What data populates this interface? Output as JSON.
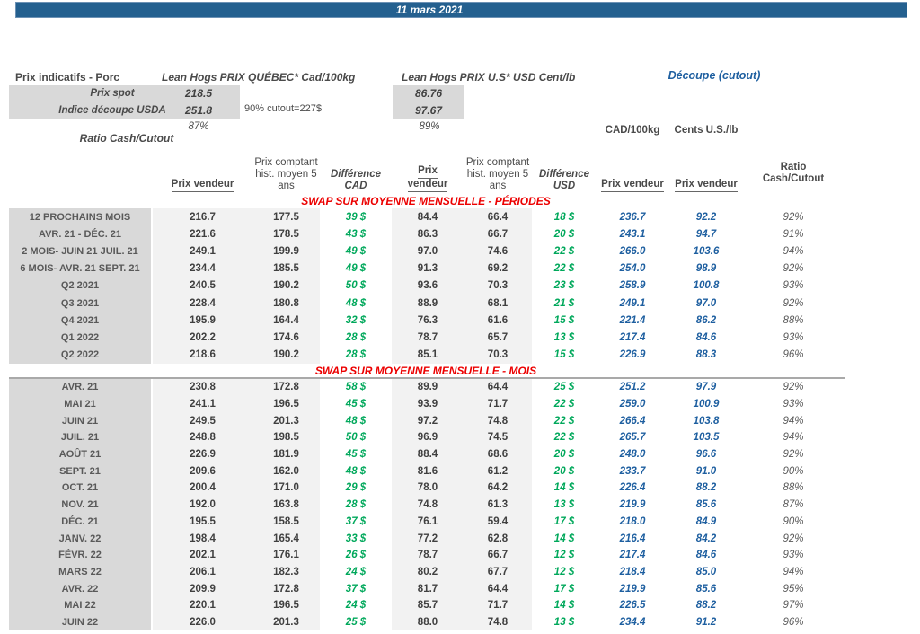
{
  "title_bar": {
    "date": "11 mars 2021"
  },
  "top": {
    "left_title": "Prix indicatifs - Porc",
    "quebec_header": "Lean Hogs PRIX QUÉBEC* Cad/100kg",
    "us_header": "Lean Hogs PRIX U.S* USD Cent/lb",
    "cutout_header": "Découpe (cutout)",
    "spot_label": "Prix spot",
    "spot_cad": "218.5",
    "spot_usd": "86.76",
    "index_label": "Indice découpe USDA",
    "index_cad": "251.8",
    "index_usd": "97.67",
    "cutout_note": "90% cutout=227$",
    "ratio_label": "Ratio Cash/Cutout",
    "ratio_cad": "87%",
    "ratio_usd": "89%"
  },
  "columns": {
    "cad_unit": "CAD/100kg",
    "us_unit": "Cents U.S./lb",
    "prix_vendeur": "Prix vendeur",
    "prix_vendeur_l1": "Prix",
    "prix_vendeur_l2": "vendeur",
    "prix_comptant_l1": "Prix comptant",
    "prix_comptant_l2": "hist. moyen 5",
    "prix_comptant_l3": "ans",
    "difference": "Différence",
    "cad": "CAD",
    "usd": "USD",
    "ratio_l1": "Ratio",
    "ratio_l2": "Cash/Cutout"
  },
  "sections": [
    {
      "header": "SWAP SUR MOYENNE MENSUELLE - PÉRIODES",
      "rows": [
        {
          "label": "12 PROCHAINS MOIS",
          "pv_cad": "216.7",
          "pc_cad": "177.5",
          "diff_cad": "39 $",
          "pv_usd": "84.4",
          "pc_usd": "66.4",
          "diff_usd": "18 $",
          "cutout_cad": "236.7",
          "cutout_us": "92.2",
          "ratio": "92%"
        },
        {
          "label": "AVR. 21 - DÉC. 21",
          "pv_cad": "221.6",
          "pc_cad": "178.5",
          "diff_cad": "43 $",
          "pv_usd": "86.3",
          "pc_usd": "66.7",
          "diff_usd": "20 $",
          "cutout_cad": "243.1",
          "cutout_us": "94.7",
          "ratio": "91%"
        },
        {
          "label": "2 MOIS- JUIN 21 JUIL. 21",
          "pv_cad": "249.1",
          "pc_cad": "199.9",
          "diff_cad": "49 $",
          "pv_usd": "97.0",
          "pc_usd": "74.6",
          "diff_usd": "22 $",
          "cutout_cad": "266.0",
          "cutout_us": "103.6",
          "ratio": "94%"
        },
        {
          "label": "6 MOIS- AVR. 21 SEPT. 21",
          "pv_cad": "234.4",
          "pc_cad": "185.5",
          "diff_cad": "49 $",
          "pv_usd": "91.3",
          "pc_usd": "69.2",
          "diff_usd": "22 $",
          "cutout_cad": "254.0",
          "cutout_us": "98.9",
          "ratio": "92%"
        },
        {
          "label": "Q2 2021",
          "pv_cad": "240.5",
          "pc_cad": "190.2",
          "diff_cad": "50 $",
          "pv_usd": "93.6",
          "pc_usd": "70.3",
          "diff_usd": "23 $",
          "cutout_cad": "258.9",
          "cutout_us": "100.8",
          "ratio": "93%"
        },
        {
          "label": "Q3 2021",
          "pv_cad": "228.4",
          "pc_cad": "180.8",
          "diff_cad": "48 $",
          "pv_usd": "88.9",
          "pc_usd": "68.1",
          "diff_usd": "21 $",
          "cutout_cad": "249.1",
          "cutout_us": "97.0",
          "ratio": "92%"
        },
        {
          "label": "Q4 2021",
          "pv_cad": "195.9",
          "pc_cad": "164.4",
          "diff_cad": "32 $",
          "pv_usd": "76.3",
          "pc_usd": "61.6",
          "diff_usd": "15 $",
          "cutout_cad": "221.4",
          "cutout_us": "86.2",
          "ratio": "88%"
        },
        {
          "label": "Q1 2022",
          "pv_cad": "202.2",
          "pc_cad": "174.6",
          "diff_cad": "28 $",
          "pv_usd": "78.7",
          "pc_usd": "65.7",
          "diff_usd": "13 $",
          "cutout_cad": "217.4",
          "cutout_us": "84.6",
          "ratio": "93%"
        },
        {
          "label": "Q2 2022",
          "pv_cad": "218.6",
          "pc_cad": "190.2",
          "diff_cad": "28 $",
          "pv_usd": "85.1",
          "pc_usd": "70.3",
          "diff_usd": "15 $",
          "cutout_cad": "226.9",
          "cutout_us": "88.3",
          "ratio": "96%"
        }
      ]
    },
    {
      "header": "SWAP SUR MOYENNE MENSUELLE - MOIS",
      "rows": [
        {
          "label": "AVR. 21",
          "pv_cad": "230.8",
          "pc_cad": "172.8",
          "diff_cad": "58 $",
          "pv_usd": "89.9",
          "pc_usd": "64.4",
          "diff_usd": "25 $",
          "cutout_cad": "251.2",
          "cutout_us": "97.9",
          "ratio": "92%"
        },
        {
          "label": "MAI 21",
          "pv_cad": "241.1",
          "pc_cad": "196.5",
          "diff_cad": "45 $",
          "pv_usd": "93.9",
          "pc_usd": "71.7",
          "diff_usd": "22 $",
          "cutout_cad": "259.0",
          "cutout_us": "100.9",
          "ratio": "93%"
        },
        {
          "label": "JUIN 21",
          "pv_cad": "249.5",
          "pc_cad": "201.3",
          "diff_cad": "48 $",
          "pv_usd": "97.2",
          "pc_usd": "74.8",
          "diff_usd": "22 $",
          "cutout_cad": "266.4",
          "cutout_us": "103.8",
          "ratio": "94%"
        },
        {
          "label": "JUIL. 21",
          "pv_cad": "248.8",
          "pc_cad": "198.5",
          "diff_cad": "50 $",
          "pv_usd": "96.9",
          "pc_usd": "74.5",
          "diff_usd": "22 $",
          "cutout_cad": "265.7",
          "cutout_us": "103.5",
          "ratio": "94%"
        },
        {
          "label": "AOÛT 21",
          "pv_cad": "226.9",
          "pc_cad": "181.9",
          "diff_cad": "45 $",
          "pv_usd": "88.4",
          "pc_usd": "68.6",
          "diff_usd": "20 $",
          "cutout_cad": "248.0",
          "cutout_us": "96.6",
          "ratio": "92%"
        },
        {
          "label": "SEPT. 21",
          "pv_cad": "209.6",
          "pc_cad": "162.0",
          "diff_cad": "48 $",
          "pv_usd": "81.6",
          "pc_usd": "61.2",
          "diff_usd": "20 $",
          "cutout_cad": "233.7",
          "cutout_us": "91.0",
          "ratio": "90%"
        },
        {
          "label": "OCT. 21",
          "pv_cad": "200.4",
          "pc_cad": "171.0",
          "diff_cad": "29 $",
          "pv_usd": "78.0",
          "pc_usd": "64.2",
          "diff_usd": "14 $",
          "cutout_cad": "226.4",
          "cutout_us": "88.2",
          "ratio": "88%"
        },
        {
          "label": "NOV. 21",
          "pv_cad": "192.0",
          "pc_cad": "163.8",
          "diff_cad": "28 $",
          "pv_usd": "74.8",
          "pc_usd": "61.3",
          "diff_usd": "13 $",
          "cutout_cad": "219.9",
          "cutout_us": "85.6",
          "ratio": "87%"
        },
        {
          "label": "DÉC. 21",
          "pv_cad": "195.5",
          "pc_cad": "158.5",
          "diff_cad": "37 $",
          "pv_usd": "76.1",
          "pc_usd": "59.4",
          "diff_usd": "17 $",
          "cutout_cad": "218.0",
          "cutout_us": "84.9",
          "ratio": "90%"
        },
        {
          "label": "JANV. 22",
          "pv_cad": "198.4",
          "pc_cad": "165.4",
          "diff_cad": "33 $",
          "pv_usd": "77.2",
          "pc_usd": "62.8",
          "diff_usd": "14 $",
          "cutout_cad": "216.4",
          "cutout_us": "84.2",
          "ratio": "92%"
        },
        {
          "label": "FÉVR. 22",
          "pv_cad": "202.1",
          "pc_cad": "176.1",
          "diff_cad": "26 $",
          "pv_usd": "78.7",
          "pc_usd": "66.7",
          "diff_usd": "12 $",
          "cutout_cad": "217.4",
          "cutout_us": "84.6",
          "ratio": "93%"
        },
        {
          "label": "MARS 22",
          "pv_cad": "206.1",
          "pc_cad": "182.3",
          "diff_cad": "24 $",
          "pv_usd": "80.2",
          "pc_usd": "67.7",
          "diff_usd": "12 $",
          "cutout_cad": "218.4",
          "cutout_us": "85.0",
          "ratio": "94%"
        },
        {
          "label": "AVR. 22",
          "pv_cad": "209.9",
          "pc_cad": "172.8",
          "diff_cad": "37 $",
          "pv_usd": "81.7",
          "pc_usd": "64.4",
          "diff_usd": "17 $",
          "cutout_cad": "219.9",
          "cutout_us": "85.6",
          "ratio": "95%"
        },
        {
          "label": "MAI 22",
          "pv_cad": "220.1",
          "pc_cad": "196.5",
          "diff_cad": "24 $",
          "pv_usd": "85.7",
          "pc_usd": "71.7",
          "diff_usd": "14 $",
          "cutout_cad": "226.5",
          "cutout_us": "88.2",
          "ratio": "97%"
        },
        {
          "label": "JUIN 22",
          "pv_cad": "226.0",
          "pc_cad": "201.3",
          "diff_cad": "25 $",
          "pv_usd": "88.0",
          "pc_usd": "74.8",
          "diff_usd": "13 $",
          "cutout_cad": "234.4",
          "cutout_us": "91.2",
          "ratio": "96%"
        }
      ]
    }
  ],
  "colors": {
    "title_bar": "#24608F",
    "accent_blue": "#1E5FA0",
    "accent_green": "#00A85B",
    "accent_red": "#EC0000",
    "label_gray_bg": "#D9D9D9",
    "band_gray_bg": "#F2F2F2"
  }
}
